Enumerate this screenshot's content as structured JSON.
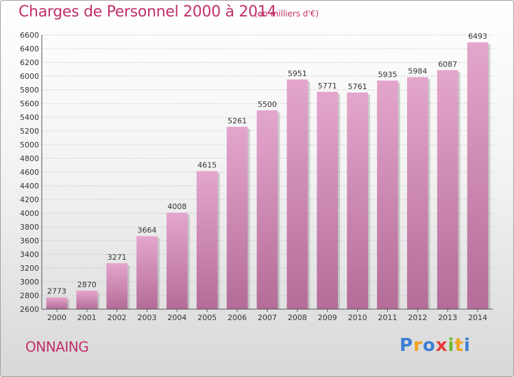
{
  "chart_data": {
    "type": "bar",
    "title": "Charges de Personnel 2000 à 2014",
    "subtitle": "(en milliers d'€)",
    "categories": [
      "2000",
      "2001",
      "2002",
      "2003",
      "2004",
      "2005",
      "2006",
      "2007",
      "2008",
      "2009",
      "2010",
      "2011",
      "2012",
      "2013",
      "2014"
    ],
    "values": [
      2773,
      2870,
      3271,
      3664,
      4008,
      4615,
      5261,
      5500,
      5951,
      5771,
      5761,
      5935,
      5984,
      6087,
      6493
    ],
    "ylim": [
      2600,
      6600
    ],
    "ytick_step": 200,
    "grid": true,
    "xlabel": "",
    "ylabel": ""
  },
  "commune": "ONNAING",
  "logo": {
    "letters": [
      "P",
      "r",
      "o",
      "x",
      "i",
      "t",
      "i"
    ],
    "colors": [
      "#3a7fd5",
      "#f0a21a",
      "#3a7fd5",
      "#e83a3a",
      "#6ab82e",
      "#f0a21a",
      "#3a7fd5"
    ]
  },
  "colors": {
    "accent": "#c0306a",
    "bar_top": "#e4a6cc",
    "bar_bottom": "#b46c98"
  }
}
